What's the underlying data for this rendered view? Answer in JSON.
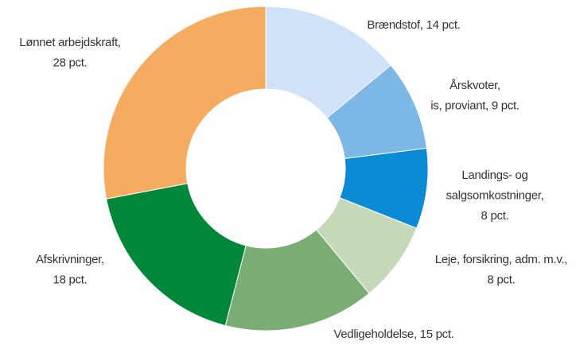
{
  "chart_data": {
    "type": "donut",
    "values": [
      14,
      9,
      8,
      8,
      15,
      18,
      28
    ],
    "value_labels": [
      [
        "Brændstof, 14 pct."
      ],
      [
        "Årskvoter,",
        "is, proviant, 9 pct."
      ],
      [
        "Landings- og",
        "salgsomkostninger,",
        "8 pct."
      ],
      [
        "Leje, forsikring, adm. m.v.,",
        "8 pct."
      ],
      [
        "Vedligeholdelse, 15 pct."
      ],
      [
        "Afskrivninger,",
        "18 pct."
      ],
      [
        "Lønnet arbejdskraft,",
        "28 pct."
      ]
    ],
    "colors": [
      "#cfe2f7",
      "#7cb7e6",
      "#0a8bd3",
      "#c5d9b8",
      "#7aad74",
      "#00873a",
      "#f5ab60"
    ]
  }
}
